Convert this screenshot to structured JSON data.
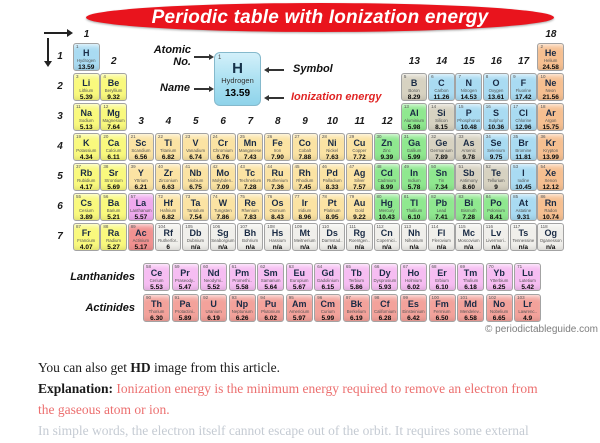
{
  "title": "Periodic table with Ionization energy",
  "legend": {
    "atomic_line1": "Atomic",
    "atomic_line2": "No.",
    "name_label": "Name",
    "symbol_label": "Symbol",
    "ionization_label": "Ionization energy",
    "cell": {
      "number": "1",
      "symbol": "H",
      "name": "Hydrogen",
      "value": "13.59"
    }
  },
  "axis": {
    "periods": [
      "1",
      "2",
      "3",
      "4",
      "5",
      "6",
      "7"
    ],
    "groups": [
      {
        "n": "1",
        "c": 1,
        "b": 0
      },
      {
        "n": "2",
        "c": 2,
        "b": 1
      },
      {
        "n": "3",
        "c": 3,
        "b": 3
      },
      {
        "n": "4",
        "c": 4,
        "b": 3
      },
      {
        "n": "5",
        "c": 5,
        "b": 3
      },
      {
        "n": "6",
        "c": 6,
        "b": 3
      },
      {
        "n": "7",
        "c": 7,
        "b": 3
      },
      {
        "n": "8",
        "c": 8,
        "b": 3
      },
      {
        "n": "9",
        "c": 9,
        "b": 3
      },
      {
        "n": "10",
        "c": 10,
        "b": 3
      },
      {
        "n": "11",
        "c": 11,
        "b": 3
      },
      {
        "n": "12",
        "c": 12,
        "b": 3
      },
      {
        "n": "13",
        "c": 13,
        "b": 1
      },
      {
        "n": "14",
        "c": 14,
        "b": 1
      },
      {
        "n": "15",
        "c": 15,
        "b": 1
      },
      {
        "n": "16",
        "c": 16,
        "b": 1
      },
      {
        "n": "17",
        "c": 17,
        "b": 1
      },
      {
        "n": "18",
        "c": 18,
        "b": 0
      }
    ]
  },
  "fblock": {
    "lanthanides_label": "Lanthanides",
    "actinides_label": "Actinides"
  },
  "watermark": "© periodictableguide.com",
  "colors": {
    "title_bg": "#e9141d",
    "title_text": "#ffffff",
    "legend_red": "#e02424",
    "explanation_red": "#ec6f6f",
    "faded_text": "#c5cbd3",
    "watermark_gray": "#7d7d7d",
    "alk": "#f9f97d",
    "tra": "#fbe3a3",
    "pst": "#8fe88f",
    "met": "#d7d2c1",
    "non": "#a9dbf2",
    "nob": "#f6bf90",
    "lan": "#f6bdf2",
    "act": "#f3a29b",
    "unk": "#f0efeb",
    "lap": "#efa9ee",
    "acp": "#f19190"
  },
  "elements": [
    [
      "1",
      "H",
      "Hydrogen",
      "13.59",
      "non",
      1,
      1
    ],
    [
      "2",
      "He",
      "Helium",
      "24.58",
      "nob",
      1,
      18
    ],
    [
      "3",
      "Li",
      "Lithium",
      "5.39",
      "alk",
      2,
      1
    ],
    [
      "4",
      "Be",
      "Beryllium",
      "9.32",
      "alk",
      2,
      2
    ],
    [
      "5",
      "B",
      "Boron",
      "8.29",
      "met",
      2,
      13
    ],
    [
      "6",
      "C",
      "Carbon",
      "11.26",
      "non",
      2,
      14
    ],
    [
      "7",
      "N",
      "Nitrogen",
      "14.53",
      "non",
      2,
      15
    ],
    [
      "8",
      "O",
      "Oxygen",
      "13.61",
      "non",
      2,
      16
    ],
    [
      "9",
      "F",
      "Fluorine",
      "17.42",
      "non",
      2,
      17
    ],
    [
      "10",
      "Ne",
      "Neon",
      "21.56",
      "nob",
      2,
      18
    ],
    [
      "11",
      "Na",
      "Sodium",
      "5.13",
      "alk",
      3,
      1
    ],
    [
      "12",
      "Mg",
      "Magnesium",
      "7.64",
      "alk",
      3,
      2
    ],
    [
      "13",
      "Al",
      "Aluminium",
      "5.98",
      "pst",
      3,
      13
    ],
    [
      "14",
      "Si",
      "Silicon",
      "8.15",
      "met",
      3,
      14
    ],
    [
      "15",
      "P",
      "Phosphorus",
      "10.48",
      "non",
      3,
      15
    ],
    [
      "16",
      "S",
      "Sulphur",
      "10.36",
      "non",
      3,
      16
    ],
    [
      "17",
      "Cl",
      "Chlorine",
      "12.96",
      "non",
      3,
      17
    ],
    [
      "18",
      "Ar",
      "Argon",
      "15.75",
      "nob",
      3,
      18
    ],
    [
      "19",
      "K",
      "Potassium",
      "4.34",
      "alk",
      4,
      1
    ],
    [
      "20",
      "Ca",
      "Calcium",
      "6.11",
      "alk",
      4,
      2
    ],
    [
      "21",
      "Sc",
      "Scandium",
      "6.56",
      "tra",
      4,
      3
    ],
    [
      "22",
      "Ti",
      "Titanium",
      "6.82",
      "tra",
      4,
      4
    ],
    [
      "23",
      "V",
      "Vanadium",
      "6.74",
      "tra",
      4,
      5
    ],
    [
      "24",
      "Cr",
      "Chromium",
      "6.76",
      "tra",
      4,
      6
    ],
    [
      "25",
      "Mn",
      "Manganese",
      "7.43",
      "tra",
      4,
      7
    ],
    [
      "26",
      "Fe",
      "Iron",
      "7.90",
      "tra",
      4,
      8
    ],
    [
      "27",
      "Co",
      "Cobalt",
      "7.88",
      "tra",
      4,
      9
    ],
    [
      "28",
      "Ni",
      "Nickel",
      "7.63",
      "tra",
      4,
      10
    ],
    [
      "29",
      "Cu",
      "Copper",
      "7.72",
      "tra",
      4,
      11
    ],
    [
      "30",
      "Zn",
      "Zinc",
      "9.39",
      "pst",
      4,
      12
    ],
    [
      "31",
      "Ga",
      "Gallium",
      "5.99",
      "pst",
      4,
      13
    ],
    [
      "32",
      "Ge",
      "Germanium",
      "7.89",
      "met",
      4,
      14
    ],
    [
      "33",
      "As",
      "Arsenic",
      "9.78",
      "met",
      4,
      15
    ],
    [
      "34",
      "Se",
      "Selenium",
      "9.75",
      "non",
      4,
      16
    ],
    [
      "35",
      "Br",
      "Bromine",
      "11.81",
      "non",
      4,
      17
    ],
    [
      "36",
      "Kr",
      "Krypton",
      "13.99",
      "nob",
      4,
      18
    ],
    [
      "37",
      "Rb",
      "Rubidium",
      "4.17",
      "alk",
      5,
      1
    ],
    [
      "38",
      "Sr",
      "Strontium",
      "5.69",
      "alk",
      5,
      2
    ],
    [
      "39",
      "Y",
      "Yttrium",
      "6.21",
      "tra",
      5,
      3
    ],
    [
      "40",
      "Zr",
      "Zirconium",
      "6.63",
      "tra",
      5,
      4
    ],
    [
      "41",
      "Nb",
      "Niobium",
      "6.75",
      "tra",
      5,
      5
    ],
    [
      "42",
      "Mo",
      "Molybden..",
      "7.09",
      "tra",
      5,
      6
    ],
    [
      "43",
      "Tc",
      "Technetium",
      "7.28",
      "tra",
      5,
      7
    ],
    [
      "44",
      "Ru",
      "Ruthenium",
      "7.36",
      "tra",
      5,
      8
    ],
    [
      "45",
      "Rh",
      "Rhodium",
      "7.45",
      "tra",
      5,
      9
    ],
    [
      "46",
      "Pd",
      "Palladium",
      "8.33",
      "tra",
      5,
      10
    ],
    [
      "47",
      "Ag",
      "Silver",
      "7.57",
      "tra",
      5,
      11
    ],
    [
      "48",
      "Cd",
      "Cadmium",
      "8.99",
      "pst",
      5,
      12
    ],
    [
      "49",
      "In",
      "Indium",
      "5.78",
      "pst",
      5,
      13
    ],
    [
      "50",
      "Sn",
      "Tin",
      "7.34",
      "pst",
      5,
      14
    ],
    [
      "51",
      "Sb",
      "Antimony",
      "8.60",
      "met",
      5,
      15
    ],
    [
      "52",
      "Te",
      "Tellurium",
      "9",
      "met",
      5,
      16
    ],
    [
      "53",
      "I",
      "Iodine",
      "10.45",
      "non",
      5,
      17
    ],
    [
      "54",
      "Xe",
      "Xenon",
      "12.12",
      "nob",
      5,
      18
    ],
    [
      "55",
      "Cs",
      "Cesium",
      "3.89",
      "alk",
      6,
      1
    ],
    [
      "56",
      "Ba",
      "Barium",
      "5.21",
      "alk",
      6,
      2
    ],
    [
      "57",
      "La",
      "Lanthanum",
      "5.57",
      "lap",
      6,
      3
    ],
    [
      "72",
      "Hf",
      "Hafnium",
      "6.82",
      "tra",
      6,
      4
    ],
    [
      "73",
      "Ta",
      "Tantalum",
      "7.54",
      "tra",
      6,
      5
    ],
    [
      "74",
      "W",
      "Tungsten",
      "7.86",
      "tra",
      6,
      6
    ],
    [
      "75",
      "Re",
      "Rhenium",
      "7.83",
      "tra",
      6,
      7
    ],
    [
      "76",
      "Os",
      "Osmium",
      "8.43",
      "tra",
      6,
      8
    ],
    [
      "77",
      "Ir",
      "Iridium",
      "8.96",
      "tra",
      6,
      9
    ],
    [
      "78",
      "Pt",
      "Platinum",
      "8.95",
      "tra",
      6,
      10
    ],
    [
      "79",
      "Au",
      "Gold",
      "9.22",
      "tra",
      6,
      11
    ],
    [
      "80",
      "Hg",
      "Mercury",
      "10.43",
      "pst",
      6,
      12
    ],
    [
      "81",
      "Tl",
      "Thallium",
      "6.10",
      "pst",
      6,
      13
    ],
    [
      "82",
      "Pb",
      "Lead",
      "7.41",
      "pst",
      6,
      14
    ],
    [
      "83",
      "Bi",
      "Bismuth",
      "7.28",
      "pst",
      6,
      15
    ],
    [
      "84",
      "Po",
      "Polonium",
      "8.41",
      "pst",
      6,
      16
    ],
    [
      "85",
      "At",
      "Astatine",
      "9.31",
      "non",
      6,
      17
    ],
    [
      "86",
      "Rn",
      "Radon",
      "10.74",
      "nob",
      6,
      18
    ],
    [
      "87",
      "Fr",
      "Francium",
      "4.07",
      "alk",
      7,
      1
    ],
    [
      "88",
      "Ra",
      "Radium",
      "5.27",
      "alk",
      7,
      2
    ],
    [
      "89",
      "Ac",
      "Actinium",
      "5.17",
      "acp",
      7,
      3
    ],
    [
      "104",
      "Rf",
      "Rutherfor..",
      "6",
      "unk",
      7,
      4
    ],
    [
      "105",
      "Db",
      "Dubnium",
      "n/a",
      "unk",
      7,
      5
    ],
    [
      "106",
      "Sg",
      "Seaborgium",
      "n/a",
      "unk",
      7,
      6
    ],
    [
      "107",
      "Bh",
      "Bohrium",
      "n/a",
      "unk",
      7,
      7
    ],
    [
      "108",
      "Hs",
      "Hassium",
      "n/a",
      "unk",
      7,
      8
    ],
    [
      "109",
      "Mt",
      "Meitnerium",
      "n/a",
      "unk",
      7,
      9
    ],
    [
      "110",
      "Ds",
      "Darmstad..",
      "n/a",
      "unk",
      7,
      10
    ],
    [
      "111",
      "Rg",
      "Roentgen..",
      "n/a",
      "unk",
      7,
      11
    ],
    [
      "112",
      "Cn",
      "Copernici..",
      "n/a",
      "unk",
      7,
      12
    ],
    [
      "113",
      "Nh",
      "Nihonium",
      "n/a",
      "unk",
      7,
      13
    ],
    [
      "114",
      "Fl",
      "Flerovium",
      "n/a",
      "unk",
      7,
      14
    ],
    [
      "115",
      "Mc",
      "Moscovium",
      "n/a",
      "unk",
      7,
      15
    ],
    [
      "116",
      "Lv",
      "Livermori..",
      "n/a",
      "unk",
      7,
      16
    ],
    [
      "117",
      "Ts",
      "Tennessine",
      "n/a",
      "unk",
      7,
      17
    ],
    [
      "118",
      "Og",
      "Oganesson",
      "n/a",
      "unk",
      7,
      18
    ],
    [
      "58",
      "Ce",
      "Cerium",
      "5.53",
      "lan",
      8,
      1
    ],
    [
      "59",
      "Pr",
      "Praseody..",
      "5.47",
      "lan",
      8,
      2
    ],
    [
      "60",
      "Nd",
      "Neodymi..",
      "5.52",
      "lan",
      8,
      3
    ],
    [
      "61",
      "Pm",
      "Promethi..",
      "5.58",
      "lan",
      8,
      4
    ],
    [
      "62",
      "Sm",
      "Samarium",
      "5.64",
      "lan",
      8,
      5
    ],
    [
      "63",
      "Eu",
      "Europium",
      "5.67",
      "lan",
      8,
      6
    ],
    [
      "64",
      "Gd",
      "Gadolinium",
      "6.15",
      "lan",
      8,
      7
    ],
    [
      "65",
      "Tb",
      "Terbium",
      "5.86",
      "lan",
      8,
      8
    ],
    [
      "66",
      "Dy",
      "Dysprosium",
      "5.93",
      "lan",
      8,
      9
    ],
    [
      "67",
      "Ho",
      "Holmium",
      "6.02",
      "lan",
      8,
      10
    ],
    [
      "68",
      "Er",
      "Erbium",
      "6.10",
      "lan",
      8,
      11
    ],
    [
      "69",
      "Tm",
      "Thulium",
      "6.18",
      "lan",
      8,
      12
    ],
    [
      "70",
      "Yb",
      "Ytterbium",
      "6.25",
      "lan",
      8,
      13
    ],
    [
      "71",
      "Lu",
      "Lutetium",
      "5.42",
      "lan",
      8,
      14
    ],
    [
      "90",
      "Th",
      "Thorium",
      "6.30",
      "act",
      9,
      1
    ],
    [
      "91",
      "Pa",
      "Protactini..",
      "5.89",
      "act",
      9,
      2
    ],
    [
      "92",
      "U",
      "Uranium",
      "6.19",
      "act",
      9,
      3
    ],
    [
      "93",
      "Np",
      "Neptunium",
      "6.26",
      "act",
      9,
      4
    ],
    [
      "94",
      "Pu",
      "Plutonium",
      "6.02",
      "act",
      9,
      5
    ],
    [
      "95",
      "Am",
      "Americium",
      "5.97",
      "act",
      9,
      6
    ],
    [
      "96",
      "Cm",
      "Curium",
      "5.99",
      "act",
      9,
      7
    ],
    [
      "97",
      "Bk",
      "Berkelium",
      "6.19",
      "act",
      9,
      8
    ],
    [
      "98",
      "Cf",
      "Californium",
      "6.28",
      "act",
      9,
      9
    ],
    [
      "99",
      "Es",
      "Einsteinium",
      "6.42",
      "act",
      9,
      10
    ],
    [
      "100",
      "Fm",
      "Fermium",
      "6.50",
      "act",
      9,
      11
    ],
    [
      "101",
      "Md",
      "Mendelev..",
      "6.58",
      "act",
      9,
      12
    ],
    [
      "102",
      "No",
      "Nobelium",
      "6.65",
      "act",
      9,
      13
    ],
    [
      "103",
      "Lr",
      "Lawrenc..",
      "4.9",
      "act",
      9,
      14
    ]
  ],
  "footer": {
    "line1_pre": "You can also get ",
    "line1_bold": "HD",
    "line1_post": " image from this article.",
    "explanation_label": "Explanation: ",
    "red_line1": "Ionization energy is the minimum energy required to remove an electron from",
    "red_line2": "the gaseous atom or ion.",
    "faded_line": "In simple words, the electron itself cannot escape out of the orbit. It requires some external"
  }
}
